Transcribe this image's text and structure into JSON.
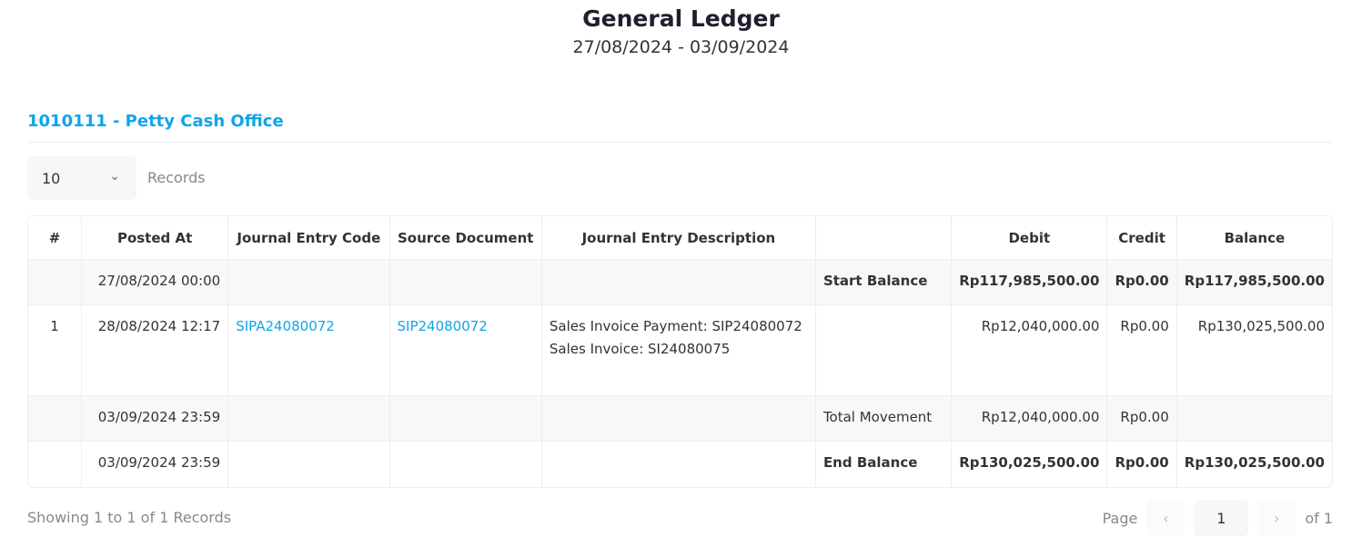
{
  "header": {
    "title": "General Ledger",
    "date_range": "27/08/2024 - 03/09/2024"
  },
  "account": "1010111 - Petty Cash Office",
  "page_size": {
    "value": "10",
    "label": "Records"
  },
  "table": {
    "columns": [
      "#",
      "Posted At",
      "Journal Entry Code",
      "Source Document",
      "Journal Entry Description",
      "",
      "Debit",
      "Credit",
      "Balance"
    ],
    "start": {
      "posted_at": "27/08/2024 00:00",
      "label": "Start Balance",
      "debit": "Rp117,985,500.00",
      "credit": "Rp0.00",
      "balance": "Rp117,985,500.00"
    },
    "rows": [
      {
        "no": "1",
        "posted_at": "28/08/2024 12:17",
        "code": "SIPA24080072",
        "source": "SIP24080072",
        "description": "Sales Invoice Payment: SIP24080072 Sales Invoice: SI24080075",
        "debit": "Rp12,040,000.00",
        "credit": "Rp0.00",
        "balance": "Rp130,025,500.00"
      }
    ],
    "movement": {
      "posted_at": "03/09/2024 23:59",
      "label": "Total Movement",
      "debit": "Rp12,040,000.00",
      "credit": "Rp0.00"
    },
    "end": {
      "posted_at": "03/09/2024 23:59",
      "label": "End Balance",
      "debit": "Rp130,025,500.00",
      "credit": "Rp0.00",
      "balance": "Rp130,025,500.00"
    }
  },
  "footer": {
    "showing": "Showing 1 to 1 of 1 Records",
    "page_label": "Page",
    "page": "1",
    "of": "of 1"
  }
}
